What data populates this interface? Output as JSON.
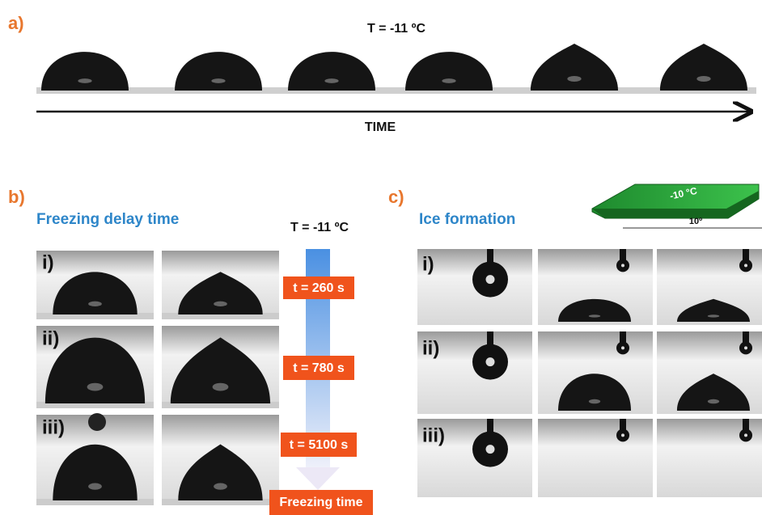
{
  "panel_a": {
    "label": "a)",
    "temperature": "T = -11 ºC",
    "axis_label": "TIME"
  },
  "panel_b": {
    "label": "b)",
    "title": "Freezing delay time",
    "temperature": "T = -11 ºC",
    "rows": [
      "i)",
      "ii)",
      "iii)"
    ],
    "times": [
      "t = 260 s",
      "t = 780 s",
      "t = 5100 s"
    ],
    "arrow_label": "Freezing time"
  },
  "panel_c": {
    "label": "c)",
    "title": "Ice formation",
    "substrate_temperature": "-10 °C",
    "tilt_angle": "10º",
    "rows": [
      "i)",
      "ii)",
      "iii)"
    ]
  }
}
